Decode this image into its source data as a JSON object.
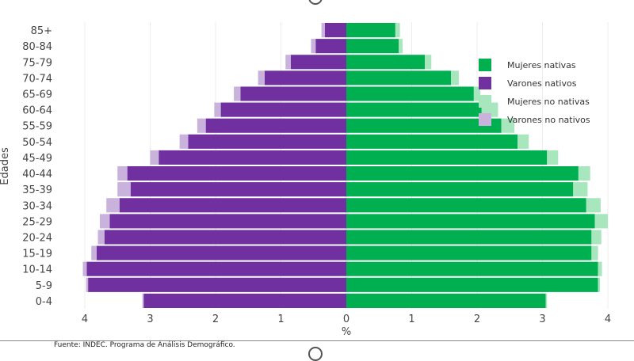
{
  "chart_data": {
    "type": "bar",
    "orientation": "horizontal-population-pyramid",
    "categories": [
      "0-4",
      "5-9",
      "10-14",
      "15-19",
      "20-24",
      "25-29",
      "30-34",
      "35-39",
      "40-44",
      "45-49",
      "50-54",
      "55-59",
      "60-64",
      "65-69",
      "70-74",
      "75-79",
      "80-84",
      "85+"
    ],
    "series": [
      {
        "name": "Mujeres nativas",
        "side": "right",
        "color": "#00b050",
        "values": [
          3.05,
          3.85,
          3.85,
          3.75,
          3.75,
          3.8,
          3.67,
          3.47,
          3.55,
          3.07,
          2.62,
          2.37,
          2.07,
          1.95,
          1.6,
          1.2,
          0.8,
          0.75
        ]
      },
      {
        "name": "Varones nativos",
        "side": "left",
        "color": "#7030a0",
        "values": [
          3.1,
          3.95,
          3.97,
          3.82,
          3.7,
          3.62,
          3.47,
          3.3,
          3.35,
          2.87,
          2.42,
          2.15,
          1.92,
          1.62,
          1.25,
          0.85,
          0.47,
          0.33
        ]
      },
      {
        "name": "Mujeres no nativas",
        "side": "right",
        "color": "#a8e6bd",
        "values": [
          0.02,
          0.03,
          0.06,
          0.1,
          0.15,
          0.2,
          0.22,
          0.22,
          0.18,
          0.17,
          0.17,
          0.2,
          0.25,
          0.1,
          0.12,
          0.1,
          0.06,
          0.07
        ]
      },
      {
        "name": "Varones no nativos",
        "side": "left",
        "color": "#c9b3dd",
        "values": [
          0.02,
          0.03,
          0.06,
          0.08,
          0.1,
          0.15,
          0.2,
          0.2,
          0.15,
          0.13,
          0.13,
          0.13,
          0.1,
          0.1,
          0.1,
          0.08,
          0.07,
          0.05
        ]
      }
    ],
    "xlabel": "%",
    "ylabel": "Edades",
    "xlim": [
      -4,
      4
    ],
    "xticks": [
      "4",
      "3",
      "2",
      "1",
      "0",
      "1",
      "2",
      "3",
      "4"
    ],
    "grid": true,
    "legend_position": "right"
  },
  "footer": {
    "source": "Fuente: INDEC. Programa de Análisis Demográfico."
  }
}
